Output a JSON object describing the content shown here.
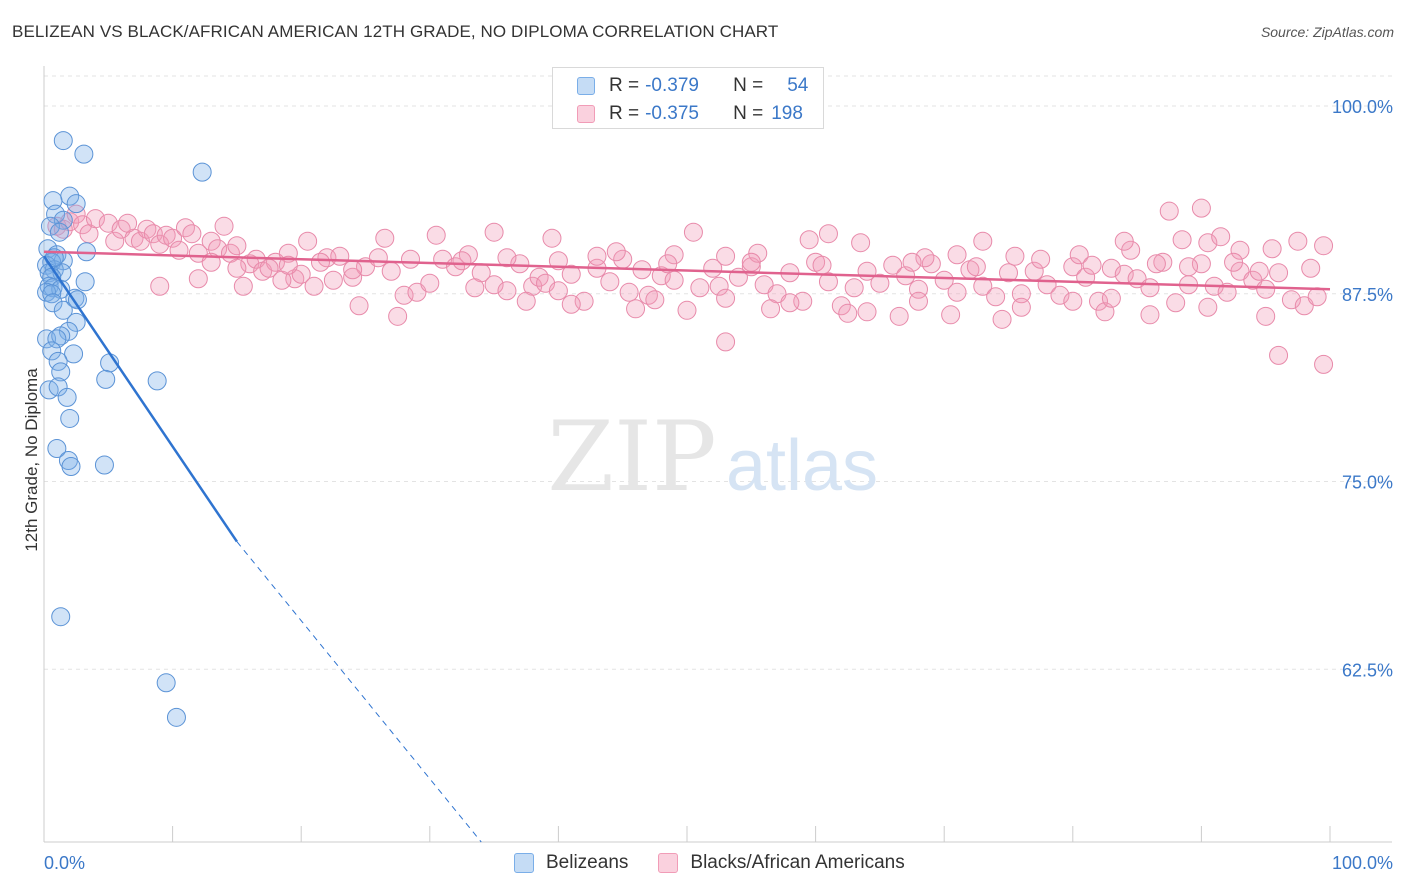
{
  "title": "BELIZEAN VS BLACK/AFRICAN AMERICAN 12TH GRADE, NO DIPLOMA CORRELATION CHART",
  "source": "Source: ZipAtlas.com",
  "watermark": {
    "zip": "ZIP",
    "atlas": "atlas"
  },
  "legend": {
    "rows": [
      {
        "r_label": "R =",
        "r_value": "-0.379",
        "n_label": "N =",
        "n_value": "54",
        "color": "#7aaee8"
      },
      {
        "r_label": "R =",
        "r_value": "-0.375",
        "n_label": "N =",
        "n_value": "198",
        "color": "#f19cb7"
      }
    ]
  },
  "bottom_legend": [
    {
      "label": "Belizeans",
      "color": "#7aaee8"
    },
    {
      "label": "Blacks/African Americans",
      "color": "#f19cb7"
    }
  ],
  "chart_data": {
    "type": "scatter",
    "title": "BELIZEAN VS BLACK/AFRICAN AMERICAN 12TH GRADE, NO DIPLOMA CORRELATION CHART",
    "xlabel": "",
    "ylabel": "12th Grade, No Diploma",
    "xlim": [
      0,
      100
    ],
    "ylim": [
      51,
      102
    ],
    "x_ticks": [
      0,
      10,
      20,
      30,
      40,
      50,
      60,
      70,
      80,
      90,
      100
    ],
    "x_tick_labels": [
      {
        "value": 0,
        "label": "0.0%"
      },
      {
        "value": 100,
        "label": "100.0%"
      }
    ],
    "y_ticks": [
      {
        "value": 100,
        "label": "100.0%"
      },
      {
        "value": 87.5,
        "label": "87.5%"
      },
      {
        "value": 75,
        "label": "75.0%"
      },
      {
        "value": 62.5,
        "label": "62.5%"
      }
    ],
    "grid": true,
    "series": [
      {
        "name": "Belizeans",
        "color": "#7aaee8",
        "stroke": "#5b93d6",
        "trend": {
          "x0": 0,
          "y0": 90.0,
          "x1": 15,
          "y1": 71.0,
          "dash_x1": 34,
          "dash_y1": 51.0,
          "line_color": "#2f74d0"
        },
        "points": [
          [
            1.5,
            97.7
          ],
          [
            3.1,
            96.8
          ],
          [
            12.3,
            95.6
          ],
          [
            2.0,
            94.0
          ],
          [
            0.7,
            93.7
          ],
          [
            2.5,
            93.5
          ],
          [
            0.9,
            92.8
          ],
          [
            1.5,
            92.4
          ],
          [
            0.5,
            92.0
          ],
          [
            1.2,
            91.6
          ],
          [
            0.3,
            90.5
          ],
          [
            1.0,
            90.1
          ],
          [
            3.3,
            90.3
          ],
          [
            1.5,
            89.7
          ],
          [
            0.6,
            89.6
          ],
          [
            0.2,
            89.4
          ],
          [
            0.8,
            89.1
          ],
          [
            0.4,
            88.9
          ],
          [
            1.4,
            88.9
          ],
          [
            0.6,
            88.6
          ],
          [
            3.2,
            88.3
          ],
          [
            0.4,
            88.0
          ],
          [
            0.7,
            87.9
          ],
          [
            1.3,
            87.8
          ],
          [
            0.2,
            87.6
          ],
          [
            0.6,
            87.5
          ],
          [
            2.4,
            87.2
          ],
          [
            2.6,
            87.1
          ],
          [
            0.7,
            86.9
          ],
          [
            1.5,
            86.4
          ],
          [
            2.5,
            85.6
          ],
          [
            1.9,
            85.0
          ],
          [
            0.2,
            84.5
          ],
          [
            1.3,
            84.7
          ],
          [
            1.0,
            84.5
          ],
          [
            0.6,
            83.7
          ],
          [
            2.3,
            83.5
          ],
          [
            1.1,
            83.0
          ],
          [
            5.1,
            82.9
          ],
          [
            1.3,
            82.3
          ],
          [
            4.8,
            81.8
          ],
          [
            8.8,
            81.7
          ],
          [
            0.4,
            81.1
          ],
          [
            1.1,
            81.3
          ],
          [
            1.8,
            80.6
          ],
          [
            2.0,
            79.2
          ],
          [
            1.0,
            77.2
          ],
          [
            1.9,
            76.4
          ],
          [
            2.1,
            76.0
          ],
          [
            4.7,
            76.1
          ],
          [
            1.3,
            66.0
          ],
          [
            9.5,
            61.6
          ],
          [
            10.3,
            59.3
          ],
          [
            0.8,
            89.9
          ]
        ]
      },
      {
        "name": "Blacks/African Americans",
        "color": "#f19cb7",
        "stroke": "#e88aaa",
        "trend": {
          "x0": 0,
          "y0": 90.3,
          "x1": 100,
          "y1": 87.8,
          "line_color": "#e0628e"
        },
        "points": [
          [
            1.0,
            92.0
          ],
          [
            1.5,
            91.8
          ],
          [
            2.0,
            92.3
          ],
          [
            2.5,
            92.8
          ],
          [
            3.0,
            92.1
          ],
          [
            3.5,
            91.5
          ],
          [
            4.0,
            92.5
          ],
          [
            5.0,
            92.2
          ],
          [
            5.5,
            91.0
          ],
          [
            6.0,
            91.8
          ],
          [
            7.0,
            91.2
          ],
          [
            7.5,
            91.0
          ],
          [
            8.0,
            91.8
          ],
          [
            8.5,
            91.5
          ],
          [
            9.0,
            90.8
          ],
          [
            9.5,
            91.4
          ],
          [
            10.0,
            91.2
          ],
          [
            11.0,
            91.9
          ],
          [
            12.0,
            90.2
          ],
          [
            13.0,
            91.0
          ],
          [
            13.5,
            90.5
          ],
          [
            14.5,
            90.2
          ],
          [
            15.0,
            90.7
          ],
          [
            16.0,
            89.5
          ],
          [
            16.5,
            89.8
          ],
          [
            17.0,
            89.0
          ],
          [
            18.0,
            89.6
          ],
          [
            19.0,
            90.2
          ],
          [
            19.5,
            88.5
          ],
          [
            20.0,
            88.8
          ],
          [
            21.0,
            88.0
          ],
          [
            22.0,
            89.9
          ],
          [
            23.0,
            90.0
          ],
          [
            24.0,
            88.6
          ],
          [
            25.0,
            89.3
          ],
          [
            26.0,
            89.9
          ],
          [
            27.0,
            89.0
          ],
          [
            28.0,
            87.4
          ],
          [
            29.0,
            87.6
          ],
          [
            30.0,
            88.2
          ],
          [
            31.0,
            89.8
          ],
          [
            32.0,
            89.3
          ],
          [
            33.0,
            90.1
          ],
          [
            34.0,
            88.9
          ],
          [
            35.0,
            88.1
          ],
          [
            36.0,
            87.7
          ],
          [
            37.0,
            89.5
          ],
          [
            38.0,
            88.0
          ],
          [
            38.5,
            88.6
          ],
          [
            39.0,
            88.2
          ],
          [
            40.0,
            87.7
          ],
          [
            41.0,
            88.8
          ],
          [
            42.0,
            87.0
          ],
          [
            43.0,
            89.2
          ],
          [
            44.0,
            88.3
          ],
          [
            45.0,
            89.8
          ],
          [
            45.5,
            87.6
          ],
          [
            46.5,
            89.1
          ],
          [
            47.0,
            87.4
          ],
          [
            48.0,
            88.7
          ],
          [
            49.0,
            88.4
          ],
          [
            50.0,
            86.4
          ],
          [
            51.0,
            87.9
          ],
          [
            52.0,
            89.2
          ],
          [
            52.5,
            88.0
          ],
          [
            53.0,
            87.2
          ],
          [
            54.0,
            88.6
          ],
          [
            55.0,
            89.3
          ],
          [
            56.0,
            88.1
          ],
          [
            57.0,
            87.5
          ],
          [
            58.0,
            88.9
          ],
          [
            59.0,
            87.0
          ],
          [
            60.0,
            89.6
          ],
          [
            61.0,
            88.3
          ],
          [
            62.0,
            86.7
          ],
          [
            63.0,
            87.9
          ],
          [
            64.0,
            89.0
          ],
          [
            65.0,
            88.2
          ],
          [
            66.0,
            89.4
          ],
          [
            67.0,
            88.7
          ],
          [
            68.0,
            87.8
          ],
          [
            69.0,
            89.5
          ],
          [
            70.0,
            88.4
          ],
          [
            71.0,
            87.6
          ],
          [
            72.0,
            89.1
          ],
          [
            73.0,
            88.0
          ],
          [
            74.0,
            87.3
          ],
          [
            75.0,
            88.9
          ],
          [
            76.0,
            87.5
          ],
          [
            77.0,
            89.0
          ],
          [
            78.0,
            88.1
          ],
          [
            79.0,
            87.4
          ],
          [
            80.0,
            89.3
          ],
          [
            81.0,
            88.6
          ],
          [
            82.0,
            87.0
          ],
          [
            83.0,
            89.2
          ],
          [
            84.0,
            88.8
          ],
          [
            85.0,
            88.5
          ],
          [
            86.0,
            87.9
          ],
          [
            87.0,
            89.6
          ],
          [
            88.0,
            86.9
          ],
          [
            89.0,
            88.1
          ],
          [
            90.0,
            89.5
          ],
          [
            91.0,
            88.0
          ],
          [
            92.0,
            87.6
          ],
          [
            93.0,
            89.0
          ],
          [
            94.0,
            88.4
          ],
          [
            95.0,
            87.8
          ],
          [
            96.0,
            88.9
          ],
          [
            97.0,
            87.1
          ],
          [
            98.0,
            86.7
          ],
          [
            99.0,
            87.3
          ],
          [
            6.5,
            92.2
          ],
          [
            11.5,
            91.5
          ],
          [
            14.0,
            92.0
          ],
          [
            20.5,
            91.0
          ],
          [
            26.5,
            91.2
          ],
          [
            30.5,
            91.4
          ],
          [
            35.0,
            91.6
          ],
          [
            44.5,
            90.3
          ],
          [
            49.0,
            90.1
          ],
          [
            53.0,
            90.0
          ],
          [
            55.5,
            90.2
          ],
          [
            59.5,
            91.1
          ],
          [
            61.0,
            91.5
          ],
          [
            68.5,
            89.9
          ],
          [
            71.0,
            90.1
          ],
          [
            75.5,
            90.0
          ],
          [
            80.5,
            90.1
          ],
          [
            84.5,
            90.4
          ],
          [
            88.5,
            91.1
          ],
          [
            90.5,
            90.9
          ],
          [
            93.0,
            90.4
          ],
          [
            95.5,
            90.5
          ],
          [
            97.5,
            91.0
          ],
          [
            99.5,
            90.7
          ],
          [
            87.5,
            93.0
          ],
          [
            90.0,
            93.2
          ],
          [
            91.5,
            91.3
          ],
          [
            84.0,
            91.0
          ],
          [
            73.0,
            91.0
          ],
          [
            63.5,
            90.9
          ],
          [
            50.5,
            91.6
          ],
          [
            39.5,
            91.2
          ],
          [
            17.5,
            89.2
          ],
          [
            22.5,
            88.4
          ],
          [
            24.5,
            86.7
          ],
          [
            33.5,
            87.9
          ],
          [
            47.5,
            87.1
          ],
          [
            56.5,
            86.5
          ],
          [
            62.5,
            86.2
          ],
          [
            66.5,
            86.0
          ],
          [
            70.5,
            86.1
          ],
          [
            74.5,
            85.8
          ],
          [
            82.5,
            86.3
          ],
          [
            86.0,
            86.1
          ],
          [
            90.5,
            86.6
          ],
          [
            95.0,
            86.0
          ],
          [
            96.0,
            83.4
          ],
          [
            99.5,
            82.8
          ],
          [
            53.0,
            84.3
          ],
          [
            27.5,
            86.0
          ],
          [
            15.5,
            88.0
          ],
          [
            9.0,
            88.0
          ],
          [
            12.0,
            88.5
          ],
          [
            18.5,
            88.4
          ],
          [
            37.5,
            87.0
          ],
          [
            41.0,
            86.8
          ],
          [
            46.0,
            86.5
          ],
          [
            58.0,
            86.9
          ],
          [
            64.0,
            86.3
          ],
          [
            68.0,
            87.0
          ],
          [
            76.0,
            86.6
          ],
          [
            80.0,
            87.0
          ],
          [
            83.0,
            87.2
          ],
          [
            89.0,
            89.3
          ],
          [
            92.5,
            89.6
          ],
          [
            94.5,
            89.0
          ],
          [
            98.5,
            89.2
          ],
          [
            86.5,
            89.5
          ],
          [
            81.5,
            89.4
          ],
          [
            77.5,
            89.8
          ],
          [
            72.5,
            89.3
          ],
          [
            67.5,
            89.6
          ],
          [
            60.5,
            89.4
          ],
          [
            55.0,
            89.6
          ],
          [
            48.5,
            89.5
          ],
          [
            43.0,
            90.0
          ],
          [
            40.0,
            89.7
          ],
          [
            36.0,
            89.9
          ],
          [
            32.5,
            89.7
          ],
          [
            28.5,
            89.8
          ],
          [
            24.0,
            89.1
          ],
          [
            21.5,
            89.6
          ],
          [
            19.0,
            89.4
          ],
          [
            15.0,
            89.2
          ],
          [
            13.0,
            89.6
          ],
          [
            10.5,
            90.4
          ]
        ]
      }
    ]
  }
}
